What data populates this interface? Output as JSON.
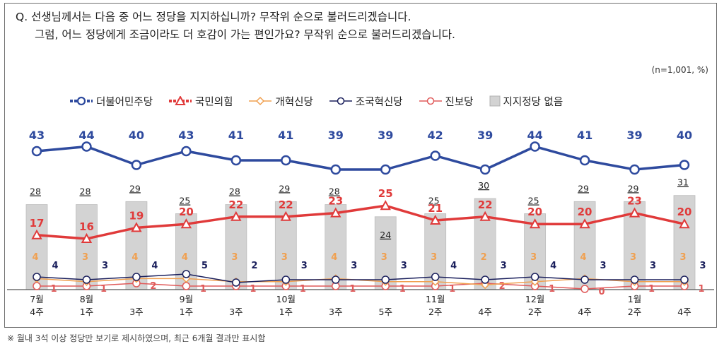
{
  "question": {
    "line1": "Q. 선생님께서는 다음 중 어느 정당을 지지하십니까? 무작위 순으로 불러드리겠습니다.",
    "line2": "그럼, 어느 정당에게 조금이라도 더 호감이 가는 편인가요? 무작위 순으로 불러드리겠습니다."
  },
  "sample_note": "(n=1,001, %)",
  "footnote": "※ 월내 3석 이상 정당만 보기로 제시하였으며, 최근 6개월 결과만 표시함",
  "chart_data": {
    "type": "line",
    "categories": [
      "7월 4주",
      "8월 1주",
      "3주",
      "9월 1주",
      "3주",
      "10월 1주",
      "3주",
      "5주",
      "11월 2주",
      "4주",
      "12월 2주",
      "4주",
      "1월 2주",
      "4주"
    ],
    "x_tick_month": [
      "7월",
      "8월",
      "",
      "9월",
      "",
      "10월",
      "",
      "",
      "11월",
      "",
      "12월",
      "",
      "1월",
      ""
    ],
    "x_tick_week": [
      "4주",
      "1주",
      "3주",
      "1주",
      "3주",
      "1주",
      "3주",
      "5주",
      "2주",
      "4주",
      "2주",
      "4주",
      "2주",
      "4주"
    ],
    "series": [
      {
        "name": "더불어민주당",
        "color": "#2e4a9e",
        "marker": "circle",
        "values": [
          43,
          44,
          40,
          43,
          41,
          41,
          39,
          39,
          42,
          39,
          44,
          41,
          39,
          40
        ]
      },
      {
        "name": "국민의힘",
        "color": "#e03a3a",
        "marker": "triangle",
        "values": [
          17,
          16,
          19,
          20,
          22,
          22,
          23,
          25,
          21,
          22,
          20,
          20,
          23,
          20
        ]
      },
      {
        "name": "개혁신당",
        "color": "#f0a050",
        "marker": "diamond",
        "values": [
          4,
          3,
          4,
          4,
          3,
          3,
          4,
          3,
          3,
          2,
          3,
          4,
          3,
          3
        ]
      },
      {
        "name": "조국혁신당",
        "color": "#1a1f5c",
        "marker": "circle",
        "values": [
          4,
          3,
          4,
          5,
          2,
          3,
          3,
          3,
          4,
          3,
          4,
          3,
          3,
          3
        ]
      },
      {
        "name": "진보당",
        "color": "#e05a5a",
        "marker": "circle",
        "values": [
          1,
          1,
          2,
          1,
          1,
          1,
          1,
          1,
          1,
          2,
          1,
          0,
          1,
          1
        ]
      }
    ],
    "bars": {
      "name": "지지정당 없음",
      "color": "#d3d3d3",
      "values": [
        28,
        28,
        29,
        25,
        28,
        29,
        28,
        24,
        25,
        30,
        25,
        29,
        29,
        31
      ]
    }
  }
}
